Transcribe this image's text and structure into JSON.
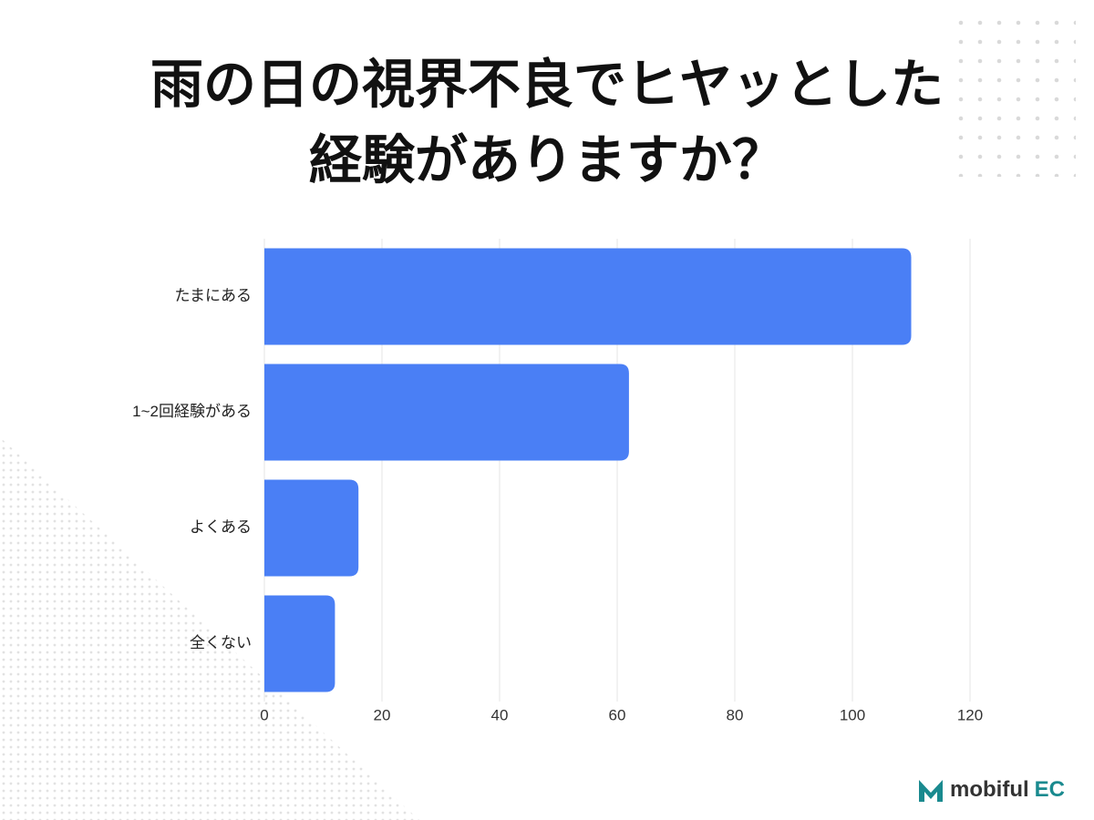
{
  "chart_data": {
    "type": "barh",
    "title": [
      "雨の日の視界不良でヒヤッとした",
      "経験がありますか？"
    ],
    "categories": [
      "たまにある",
      "1~2回経験がある",
      "よくある",
      "全くない"
    ],
    "values": [
      110,
      62,
      16,
      12
    ],
    "color": "#4a7ff5",
    "xlim": [
      0,
      120
    ],
    "xticks": [
      0,
      20,
      40,
      60,
      80,
      100,
      120
    ],
    "grid": true
  },
  "brand": {
    "name": "mobiful",
    "suffix": "EC"
  }
}
